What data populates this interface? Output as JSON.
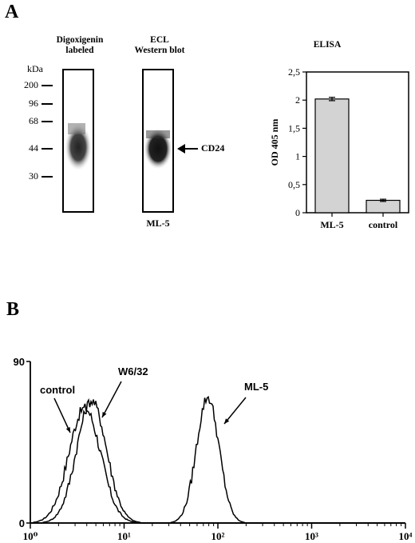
{
  "panel_a": {
    "letter": "A",
    "lane1_header_line1": "Digoxigenin",
    "lane1_header_line2": "labeled",
    "lane2_header_line1": "ECL",
    "lane2_header_line2": "Western blot",
    "kda_label": "kDa",
    "markers": [
      "200",
      "96",
      "68",
      "44",
      "30"
    ],
    "arrow_label": "CD24",
    "lane2_caption": "ML-5",
    "elisa_title": "ELISA"
  },
  "panel_b": {
    "letter": "B"
  },
  "chart_data": [
    {
      "type": "bar",
      "title": "ELISA",
      "ylabel": "OD 405 nm",
      "categories": [
        "ML-5",
        "control"
      ],
      "values": [
        2.02,
        0.22
      ],
      "errors": [
        0.03,
        0.02
      ],
      "ylim": [
        0,
        2.5
      ],
      "yticks": [
        "0",
        "0,5",
        "1",
        "1,5",
        "2",
        "2,5"
      ],
      "bar_color": "#d3d3d3"
    },
    {
      "type": "line",
      "xscale": "log",
      "xlim": [
        1,
        10000
      ],
      "ylim": [
        0,
        90
      ],
      "xticks": [
        "10⁰",
        "10¹",
        "10²",
        "10³",
        "10⁴"
      ],
      "yticks": [
        "0",
        "90"
      ],
      "annotations": [
        "control",
        "W6/32",
        "ML-5"
      ],
      "series": [
        {
          "name": "control",
          "peak_x": 3.8,
          "peak_y": 64
        },
        {
          "name": "W6/32",
          "peak_x": 4.5,
          "peak_y": 68
        },
        {
          "name": "ML-5",
          "peak_x": 78,
          "peak_y": 70
        }
      ]
    }
  ]
}
